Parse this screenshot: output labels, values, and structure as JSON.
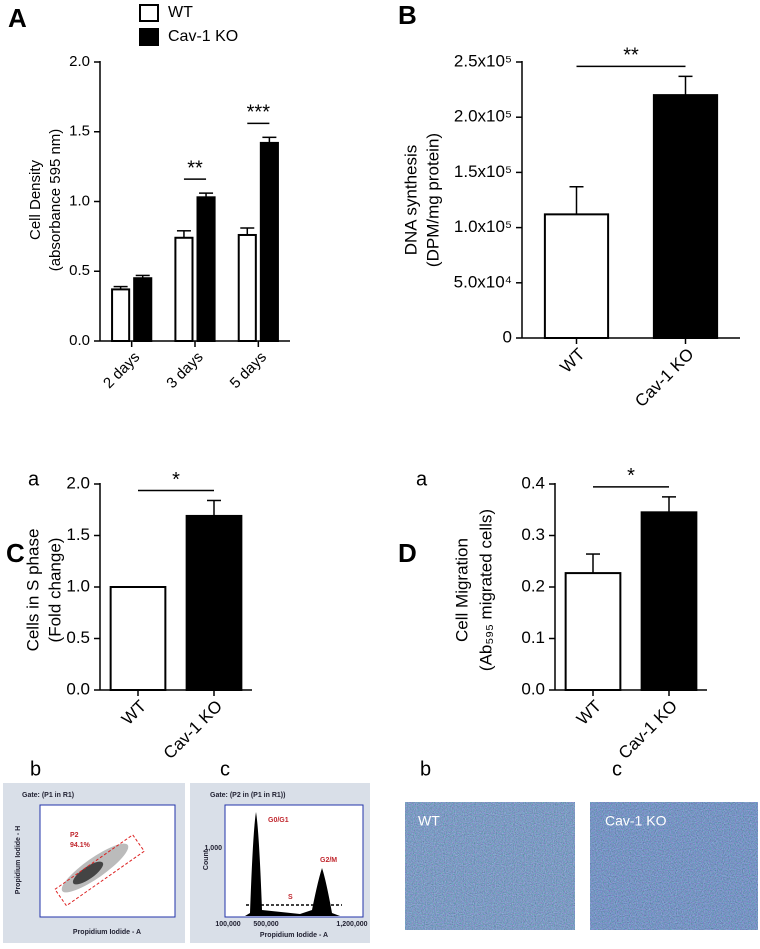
{
  "chart_data": [
    {
      "type": "bar",
      "panel": "A",
      "ylabel": [
        "Cell Density",
        "(absorbance 595 nm)"
      ],
      "categories": [
        "2 days",
        "3 days",
        "5 days"
      ],
      "series": [
        {
          "name": "WT",
          "color": "#ffffff",
          "values": [
            0.37,
            0.74,
            0.76
          ],
          "errors": [
            0.02,
            0.05,
            0.05
          ]
        },
        {
          "name": "Cav-1 KO",
          "color": "#000000",
          "values": [
            0.45,
            1.03,
            1.42
          ],
          "errors": [
            0.02,
            0.03,
            0.04
          ]
        }
      ],
      "annotations": [
        null,
        "**",
        "***"
      ],
      "ylim": [
        0,
        2.0
      ],
      "yticks": [
        {
          "value": 0,
          "label": "0.0"
        },
        0.5,
        {
          "value": 1,
          "label": "1.0"
        },
        1.5,
        {
          "value": 2,
          "label": "2.0"
        }
      ]
    },
    {
      "type": "bar",
      "panel": "B",
      "ylabel": [
        "DNA synthesis",
        "(DPM/mg protein)"
      ],
      "categories": [
        "WT",
        "Cav-1 KO"
      ],
      "values": [
        112000,
        220000
      ],
      "errors": [
        25000,
        17000
      ],
      "colors": [
        "#ffffff",
        "#000000"
      ],
      "annotation": "**",
      "ylim": [
        0,
        250000
      ],
      "yticks": [
        0,
        {
          "value": 50000,
          "label": "5.0x10⁴"
        },
        {
          "value": 100000,
          "label": "1.0x10⁵"
        },
        {
          "value": 150000,
          "label": "1.5x10⁵"
        },
        {
          "value": 200000,
          "label": "2.0x10⁵"
        },
        {
          "value": 250000,
          "label": "2.5x10⁵"
        }
      ]
    },
    {
      "type": "bar",
      "panel": "C",
      "sublabel": "a",
      "ylabel": [
        "Cells in S phase",
        "(Fold change)"
      ],
      "categories": [
        "WT",
        "Cav-1 KO"
      ],
      "values": [
        1.0,
        1.69
      ],
      "errors": [
        0,
        0.15
      ],
      "colors": [
        "#ffffff",
        "#000000"
      ],
      "annotation": "*",
      "ylim": [
        0,
        2.0
      ],
      "yticks": [
        {
          "value": 0,
          "label": "0.0"
        },
        0.5,
        {
          "value": 1,
          "label": "1.0"
        },
        1.5,
        {
          "value": 2,
          "label": "2.0"
        }
      ]
    },
    {
      "type": "bar",
      "panel": "D",
      "sublabel": "a",
      "ylabel": [
        "Cell Migration",
        "(Ab₅₉₅ migrated cells)"
      ],
      "categories": [
        "WT",
        "Cav-1 KO"
      ],
      "values": [
        0.227,
        0.345
      ],
      "errors": [
        0.037,
        0.03
      ],
      "colors": [
        "#ffffff",
        "#000000"
      ],
      "annotation": "*",
      "ylim": [
        0,
        0.4
      ],
      "yticks": [
        {
          "value": 0,
          "label": "0.0"
        },
        0.1,
        0.2,
        0.3,
        0.4
      ]
    }
  ],
  "images": [
    {
      "sublabel": "b",
      "gate": "Gate: (P1 in R1)",
      "gate_name": "P2",
      "gate_percent": "94.1%",
      "xlabel": "Propidium Iodide - A",
      "ylabel": "Propidium Iodide - H"
    },
    {
      "sublabel": "c",
      "gate": "Gate: (P2 in (P1 in R1))",
      "peaks": [
        "G0/G1",
        "S",
        "G2/M"
      ],
      "xlabel": "Propidium Iodide - A",
      "ylabel": "Count",
      "xticks": [
        "100,000",
        "500,000",
        "1,200,000"
      ],
      "ytick": "1,000"
    },
    {
      "sublabel": "b",
      "caption": "WT"
    },
    {
      "sublabel": "c",
      "caption": "Cav-1 KO"
    }
  ]
}
